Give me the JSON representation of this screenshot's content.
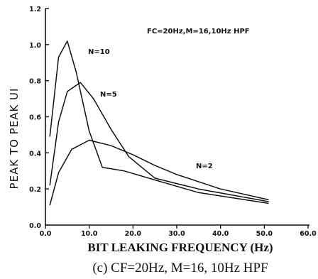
{
  "chart_data": {
    "type": "line",
    "annotation": "FC=20Hz,M=16,10Hz HPF",
    "xlabel": "BIT LEAKING FREQUENCY (Hz)",
    "ylabel": "PEAK TO PEAK UI",
    "caption": "(c) CF=20Hz,  M=16, 10Hz HPF",
    "xlim": [
      0,
      60
    ],
    "ylim": [
      0,
      1.2
    ],
    "x_ticks": [
      {
        "value": 0,
        "label": "0.0"
      },
      {
        "value": 10,
        "label": "10.0"
      },
      {
        "value": 20,
        "label": "20.0"
      },
      {
        "value": 30,
        "label": "30.0"
      },
      {
        "value": 40,
        "label": "40.0"
      },
      {
        "value": 50,
        "label": "50.0"
      },
      {
        "value": 60,
        "label": "60.0"
      }
    ],
    "y_ticks": [
      {
        "value": 0,
        "label": "0.0"
      },
      {
        "value": 0.2,
        "label": "0.2"
      },
      {
        "value": 0.4,
        "label": "0.4"
      },
      {
        "value": 0.6,
        "label": "0.6"
      },
      {
        "value": 0.8,
        "label": "0.8"
      },
      {
        "value": 1.0,
        "label": "1.0"
      },
      {
        "value": 1.2,
        "label": "1.2"
      }
    ],
    "grid": false,
    "series": [
      {
        "name": "N=10",
        "x": [
          1,
          3,
          5,
          7,
          10,
          13,
          18,
          25,
          35,
          51
        ],
        "y": [
          0.49,
          0.93,
          1.02,
          0.85,
          0.52,
          0.32,
          0.3,
          0.25,
          0.18,
          0.12
        ]
      },
      {
        "name": "N=5",
        "x": [
          1,
          3,
          5,
          8,
          11,
          15,
          19,
          25,
          35,
          51
        ],
        "y": [
          0.22,
          0.57,
          0.74,
          0.79,
          0.7,
          0.53,
          0.38,
          0.26,
          0.2,
          0.13
        ]
      },
      {
        "name": "N=2",
        "x": [
          1,
          3,
          6,
          10,
          15,
          20,
          25,
          30,
          40,
          51
        ],
        "y": [
          0.11,
          0.29,
          0.42,
          0.47,
          0.44,
          0.39,
          0.33,
          0.28,
          0.2,
          0.14
        ]
      }
    ]
  }
}
